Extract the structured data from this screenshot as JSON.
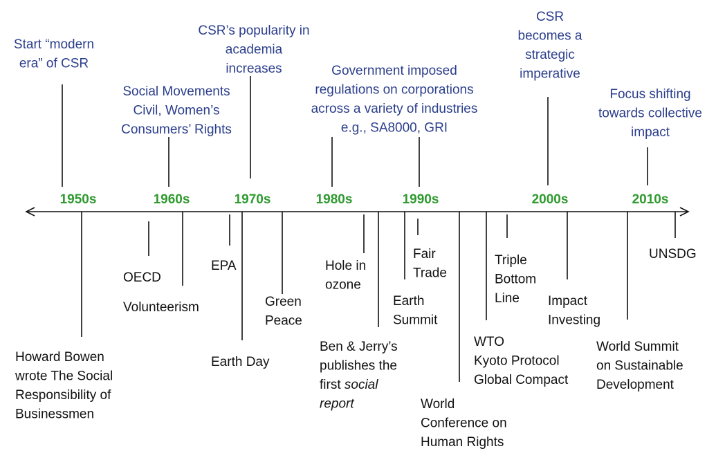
{
  "decades": [
    "1950s",
    "1960s",
    "1970s",
    "1980s",
    "1990s",
    "2000s",
    "2010s"
  ],
  "top_events": [
    {
      "lines": [
        "Start “modern",
        "era” of CSR"
      ]
    },
    {
      "lines": [
        "Social Movements",
        "Civil, Women’s",
        "Consumers’ Rights"
      ]
    },
    {
      "lines": [
        "CSR’s popularity in",
        "academia",
        "increases"
      ]
    },
    {
      "lines": [
        "Government imposed",
        "regulations on corporations",
        "across a variety of industries",
        "e.g., SA8000, GRI"
      ]
    },
    {
      "lines": [
        "CSR",
        "becomes a",
        "strategic",
        "imperative"
      ]
    },
    {
      "lines": [
        "Focus shifting",
        "towards collective",
        "impact"
      ]
    }
  ],
  "bottom_events": [
    {
      "lines": [
        "Howard Bowen",
        "wrote The Social",
        "Responsibility of",
        "Businessmen"
      ]
    },
    {
      "lines": [
        "OECD"
      ]
    },
    {
      "lines": [
        "Volunteerism"
      ]
    },
    {
      "lines": [
        "EPA"
      ]
    },
    {
      "lines": [
        "Earth Day"
      ]
    },
    {
      "lines": [
        "Green",
        "Peace"
      ]
    },
    {
      "lines": [
        "Hole in",
        "ozone"
      ]
    },
    {
      "lines": [
        "Ben & Jerry’s",
        "publishes the",
        [
          {
            "text": "first "
          },
          {
            "text": "social",
            "style": "italic"
          }
        ],
        [
          {
            "text": "report",
            "style": "italic"
          }
        ]
      ]
    },
    {
      "lines": [
        "Earth",
        "Summit"
      ]
    },
    {
      "lines": [
        "Fair",
        "Trade"
      ]
    },
    {
      "lines": [
        "World",
        "Conference on",
        "Human  Rights"
      ]
    },
    {
      "lines": [
        "WTO",
        "Kyoto Protocol",
        "Global Compact"
      ]
    },
    {
      "lines": [
        "Triple",
        "Bottom",
        "Line"
      ]
    },
    {
      "lines": [
        "Impact",
        "Investing"
      ]
    },
    {
      "lines": [
        "World Summit",
        "on Sustainable",
        "Development"
      ]
    },
    {
      "lines": [
        "UNSDG"
      ]
    }
  ]
}
